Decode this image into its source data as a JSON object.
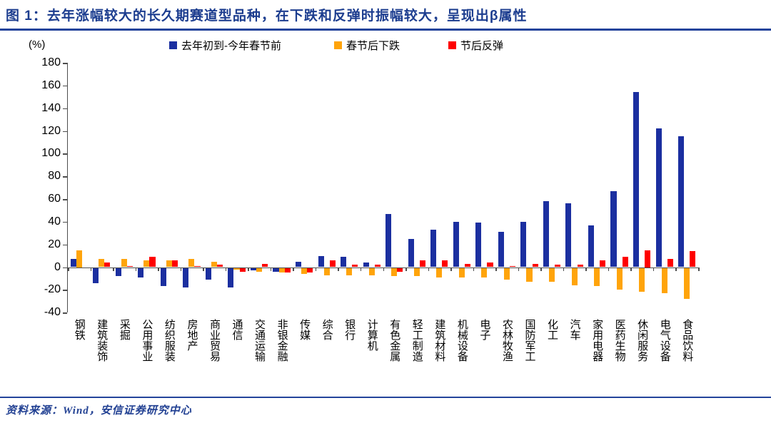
{
  "title": {
    "prefix": "图 1：",
    "text": "去年涨幅较大的长久期赛道型品种，在下跌和反弹时振幅较大，呈现出β属性"
  },
  "chart_data": {
    "type": "bar",
    "unit_label": "(%)",
    "ylim": [
      -40,
      180
    ],
    "ytick_step": 20,
    "grid": false,
    "legend_position": "top",
    "categories": [
      "钢铁",
      "建筑装饰",
      "采掘",
      "公用事业",
      "纺织服装",
      "房地产",
      "商业贸易",
      "通信",
      "交通运输",
      "非银金融",
      "传媒",
      "综合",
      "银行",
      "计算机",
      "有色金属",
      "轻工制造",
      "建筑材料",
      "机械设备",
      "电子",
      "农林牧渔",
      "国防军工",
      "化工",
      "汽车",
      "家用电器",
      "医药生物",
      "休闲服务",
      "电气设备",
      "食品饮料"
    ],
    "series": [
      {
        "name": "去年初到-今年春节前",
        "color": "#1b2fa0",
        "values": [
          7,
          -13,
          -7,
          -8,
          -16,
          -17,
          -10,
          -17,
          -2,
          -3,
          5,
          10,
          9,
          4,
          47,
          25,
          33,
          40,
          39,
          31,
          40,
          58,
          56,
          37,
          67,
          154,
          122,
          115
        ]
      },
      {
        "name": "春节后下跌",
        "color": "#ffa40b",
        "values": [
          15,
          7,
          7,
          6,
          6,
          7,
          5,
          -1,
          -3,
          -4,
          -5,
          -6,
          -6,
          -6,
          -7,
          -7,
          -8,
          -8,
          -8,
          -10,
          -12,
          -12,
          -15,
          -16,
          -19,
          -21,
          -22,
          -27
        ]
      },
      {
        "name": "节后反弹",
        "color": "#fe0000",
        "values": [
          0,
          4,
          1,
          9,
          6,
          1,
          2,
          -3,
          3,
          -4,
          -4,
          6,
          2,
          2,
          -3,
          6,
          6,
          3,
          4,
          1,
          3,
          2,
          2,
          6,
          9,
          15,
          7,
          14
        ]
      }
    ]
  },
  "footer": {
    "source_label": "资料来源：Wind，安信证券研究中心"
  },
  "colors": {
    "title_text": "#1c3d8f",
    "rule_line": "#24449b",
    "axis_line": "#4d4d4d"
  }
}
